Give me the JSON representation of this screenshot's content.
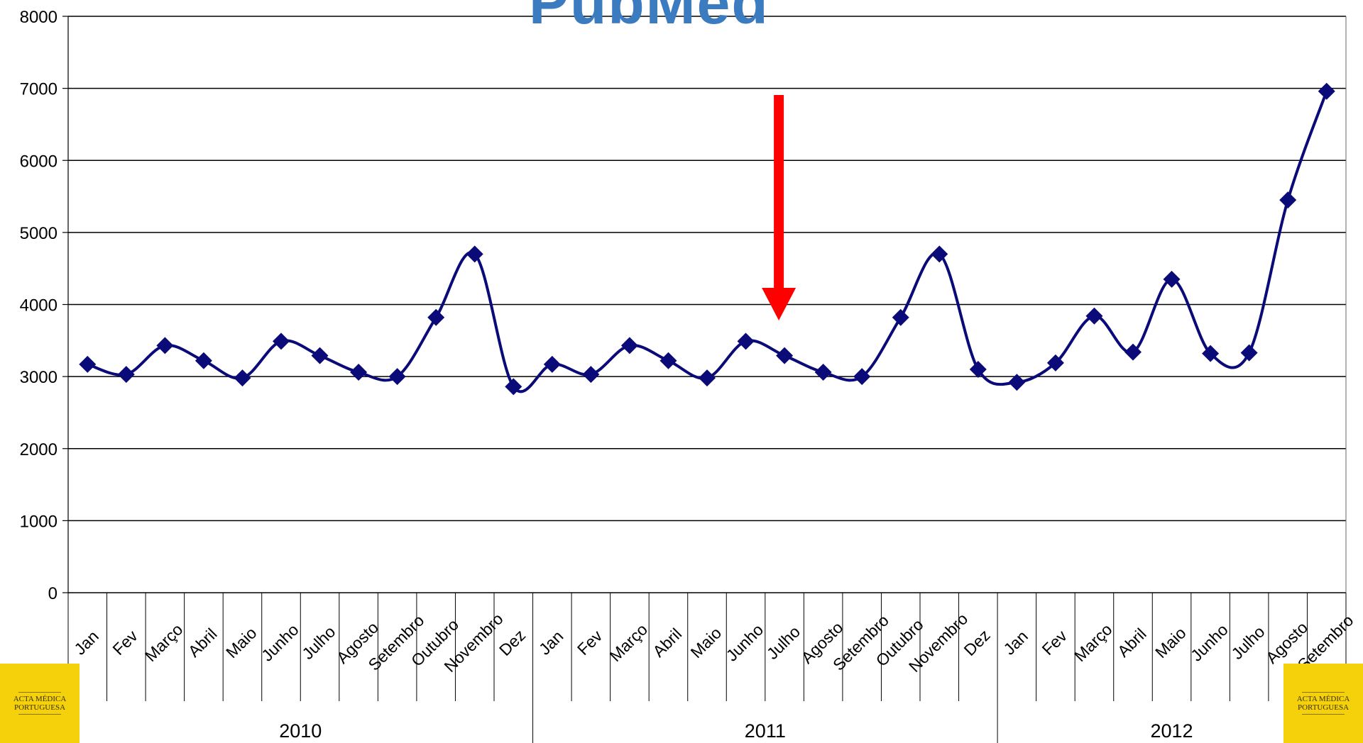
{
  "logo": {
    "text": "PubMed",
    "color": "#3b7bbf"
  },
  "badge": {
    "title": "ACTA MÉDICA\nPORTUGUESA",
    "background": "#f5d10c"
  },
  "chart_data": {
    "type": "line",
    "title": "",
    "xlabel": "",
    "ylabel": "",
    "ylim": [
      0,
      8000
    ],
    "yticks": [
      0,
      1000,
      2000,
      3000,
      4000,
      5000,
      6000,
      7000,
      8000
    ],
    "grid": true,
    "legend": "none",
    "line_color": "#0a0a78",
    "marker": "diamond",
    "annotation": {
      "type": "arrow",
      "color": "#ff0000",
      "points_to": "2011 Julho"
    },
    "years": [
      {
        "label": "2010",
        "months": [
          "Jan",
          "Fev",
          "Março",
          "Abril",
          "Maio",
          "Junho",
          "Julho",
          "Agosto",
          "Setembro",
          "Outubro",
          "Novembro",
          "Dez"
        ]
      },
      {
        "label": "2011",
        "months": [
          "Jan",
          "Fev",
          "Março",
          "Abril",
          "Maio",
          "Junho",
          "Julho",
          "Agosto",
          "Setembro",
          "Outubro",
          "Novembro",
          "Dez"
        ]
      },
      {
        "label": "2012",
        "months": [
          "Jan",
          "Fev",
          "Março",
          "Abril",
          "Maio",
          "Junho",
          "Julho",
          "Agosto",
          "Setembro"
        ]
      }
    ],
    "values": [
      3170,
      3030,
      3430,
      3220,
      2980,
      3490,
      3290,
      3060,
      3000,
      3820,
      4700,
      2860,
      3170,
      3030,
      3430,
      3220,
      2980,
      3490,
      3290,
      3060,
      3000,
      3820,
      4700,
      3100,
      2920,
      3190,
      3840,
      3340,
      4350,
      3320,
      3330,
      5450,
      6960
    ]
  }
}
